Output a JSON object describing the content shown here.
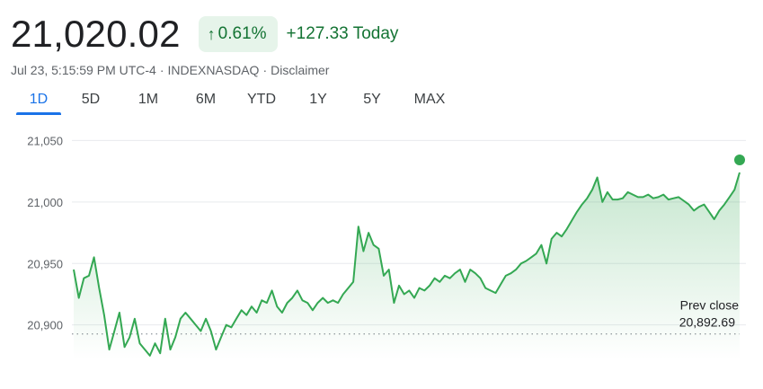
{
  "quote": {
    "price": "21,020.02",
    "percent_change": "0.61%",
    "point_change": "+127.33",
    "period_label": "Today",
    "timestamp": "Jul 23, 5:15:59 PM UTC-4",
    "separator": "·",
    "exchange": "INDEXNASDAQ",
    "disclaimer": "Disclaimer"
  },
  "icons": {
    "change_arrow": "arrow-up-icon"
  },
  "colors": {
    "up": "#137333",
    "line": "#34a853",
    "accent": "#1a73e8",
    "chip_bg": "#e6f4ea"
  },
  "tabs": [
    {
      "label": "1D",
      "active": true
    },
    {
      "label": "5D",
      "active": false
    },
    {
      "label": "1M",
      "active": false
    },
    {
      "label": "6M",
      "active": false
    },
    {
      "label": "YTD",
      "active": false
    },
    {
      "label": "1Y",
      "active": false
    },
    {
      "label": "5Y",
      "active": false
    },
    {
      "label": "MAX",
      "active": false
    }
  ],
  "chart_data": {
    "type": "area",
    "xlabel": "",
    "ylabel": "",
    "ylim": [
      20872,
      21062
    ],
    "yticks": [
      20900,
      20950,
      21000,
      21050
    ],
    "ytick_labels": [
      "20,900",
      "20,950",
      "21,000",
      "21,050"
    ],
    "grid": true,
    "prev_close_label": "Prev close",
    "prev_close_value_label": "20,892.69",
    "prev_close": 20892.69,
    "last_value": 21024.0,
    "series": [
      {
        "values": [
          20945,
          20922,
          20938,
          20940,
          20955,
          20930,
          20908,
          20880,
          20895,
          20910,
          20882,
          20890,
          20905,
          20885,
          20880,
          20875,
          20885,
          20877,
          20905,
          20880,
          20890,
          20905,
          20910,
          20905,
          20900,
          20895,
          20905,
          20895,
          20880,
          20890,
          20900,
          20898,
          20905,
          20912,
          20908,
          20915,
          20910,
          20920,
          20918,
          20928,
          20915,
          20910,
          20918,
          20922,
          20928,
          20920,
          20918,
          20912,
          20918,
          20922,
          20918,
          20920,
          20918,
          20925,
          20930,
          20935,
          20980,
          20960,
          20975,
          20965,
          20962,
          20940,
          20945,
          20918,
          20932,
          20925,
          20928,
          20922,
          20930,
          20928,
          20932,
          20938,
          20935,
          20940,
          20938,
          20942,
          20945,
          20935,
          20945,
          20942,
          20938,
          20930,
          20928,
          20926,
          20933,
          20940,
          20942,
          20945,
          20950,
          20952,
          20955,
          20958,
          20965,
          20950,
          20970,
          20975,
          20972,
          20978,
          20985,
          20992,
          20998,
          21003,
          21010,
          21020,
          21000,
          21008,
          21002,
          21002,
          21003,
          21008,
          21006,
          21004,
          21004,
          21006,
          21003,
          21004,
          21006,
          21002,
          21003,
          21004,
          21001,
          20998,
          20993,
          20996,
          20998,
          20992,
          20986,
          20993,
          20998,
          21004,
          21010,
          21024
        ]
      }
    ]
  }
}
